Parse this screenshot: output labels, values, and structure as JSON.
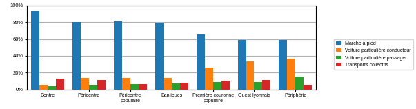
{
  "chart_data": {
    "type": "bar",
    "categories": [
      "Centre",
      "Péricentre",
      "Péricentre\npopulaire",
      "Banlieues",
      "Première couronne\npopulaire",
      "Ouest lyonnais",
      "Périphérie"
    ],
    "series": [
      {
        "name": "Marche à pied",
        "values": [
          93,
          80,
          81,
          79,
          65,
          59,
          59
        ]
      },
      {
        "name": "Voiture particulière conducteur",
        "values": [
          5,
          14,
          14,
          14,
          26,
          33,
          37
        ]
      },
      {
        "name": "Voiture particulière passager",
        "values": [
          4,
          5,
          6,
          7,
          9,
          9,
          15
        ]
      },
      {
        "name": "Transports collectifs",
        "values": [
          13,
          11,
          6,
          8,
          10,
          11,
          5
        ]
      }
    ],
    "ylim": [
      0,
      100
    ],
    "yticks": [
      {
        "value": 0,
        "label": "0%"
      },
      {
        "value": 20,
        "label": "20%"
      },
      {
        "value": 40,
        "label": "40%"
      },
      {
        "value": 60,
        "label": "60%"
      },
      {
        "value": 80,
        "label": "80%"
      },
      {
        "value": 100,
        "label": "100%"
      }
    ],
    "grid": true,
    "legend": "right"
  }
}
